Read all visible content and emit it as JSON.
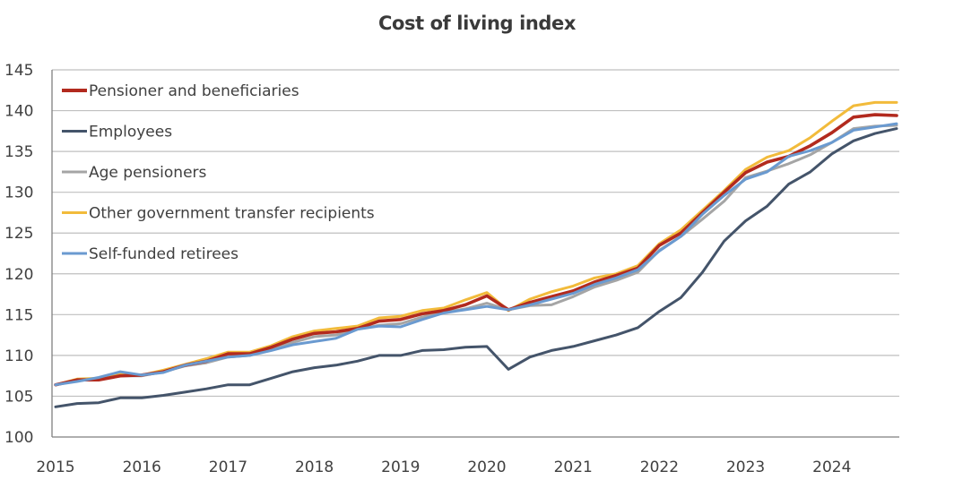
{
  "chart_data": {
    "type": "line",
    "title": "Cost of living index",
    "xlabel": "",
    "ylabel": "",
    "ylim": [
      100,
      145
    ],
    "yticks": [
      "100",
      "105",
      "110",
      "115",
      "120",
      "125",
      "130",
      "135",
      "140",
      "145"
    ],
    "xticks": [
      "2015",
      "2016",
      "2017",
      "2018",
      "2019",
      "2020",
      "2021",
      "2022",
      "2023",
      "2024"
    ],
    "x_periods": "quarterly, 2015 Q1 to 2024 Q4",
    "grid": "horizontal",
    "legend_position": "top-left",
    "series": [
      {
        "name": "Pensioner and beneficiaries",
        "color": "#b22a1e",
        "values": [
          106.4,
          107.0,
          107.0,
          107.5,
          107.6,
          108.0,
          108.8,
          109.3,
          110.2,
          110.2,
          111.0,
          112.0,
          112.7,
          112.9,
          113.3,
          114.2,
          114.4,
          115.1,
          115.5,
          116.2,
          117.3,
          115.6,
          116.5,
          117.2,
          117.9,
          119.0,
          119.8,
          120.7,
          123.5,
          125.0,
          127.5,
          130.0,
          132.4,
          133.7,
          134.4,
          135.7,
          137.3,
          139.2,
          139.5,
          139.4
        ]
      },
      {
        "name": "Employees",
        "color": "#44546a",
        "values": [
          103.7,
          104.1,
          104.2,
          104.8,
          104.8,
          105.1,
          105.5,
          105.9,
          106.4,
          106.4,
          107.2,
          108.0,
          108.5,
          108.8,
          109.3,
          110.0,
          110.0,
          110.6,
          110.7,
          111.0,
          111.1,
          108.3,
          109.8,
          110.6,
          111.1,
          111.8,
          112.5,
          113.4,
          115.4,
          117.1,
          120.2,
          124.0,
          126.5,
          128.3,
          131.0,
          132.5,
          134.7,
          136.3,
          137.2,
          137.8
        ]
      },
      {
        "name": "Age pensioners",
        "color": "#a5a5a5",
        "values": [
          106.4,
          106.9,
          107.1,
          107.5,
          107.5,
          108.0,
          108.7,
          109.1,
          109.8,
          110.0,
          110.8,
          111.6,
          112.3,
          112.5,
          113.2,
          113.7,
          113.9,
          114.7,
          115.3,
          115.7,
          116.4,
          115.6,
          116.1,
          116.2,
          117.2,
          118.4,
          119.2,
          120.2,
          122.9,
          124.6,
          126.7,
          128.9,
          131.8,
          132.6,
          133.5,
          134.6,
          136.1,
          137.8,
          138.1,
          138.2
        ]
      },
      {
        "name": "Other government transfer recipients",
        "color": "#f2bb3b",
        "values": [
          106.4,
          107.1,
          107.2,
          107.7,
          107.6,
          108.2,
          108.9,
          109.6,
          110.4,
          110.4,
          111.2,
          112.3,
          113.0,
          113.3,
          113.6,
          114.6,
          114.8,
          115.5,
          115.8,
          116.8,
          117.7,
          115.5,
          116.9,
          117.8,
          118.5,
          119.5,
          120.0,
          121.0,
          123.7,
          125.4,
          127.8,
          130.2,
          132.8,
          134.3,
          135.1,
          136.7,
          138.7,
          140.6,
          141.0,
          141.0
        ]
      },
      {
        "name": "Self-funded retirees",
        "color": "#6a9ad0",
        "values": [
          106.4,
          106.8,
          107.3,
          108.0,
          107.6,
          107.9,
          108.8,
          109.3,
          109.8,
          110.0,
          110.6,
          111.3,
          111.7,
          112.1,
          113.2,
          113.6,
          113.5,
          114.4,
          115.2,
          115.6,
          116.0,
          115.6,
          116.2,
          116.9,
          117.6,
          118.7,
          119.5,
          120.5,
          122.8,
          124.6,
          127.3,
          129.6,
          131.6,
          132.5,
          134.4,
          135.1,
          136.1,
          137.6,
          138.0,
          138.4
        ]
      }
    ]
  }
}
